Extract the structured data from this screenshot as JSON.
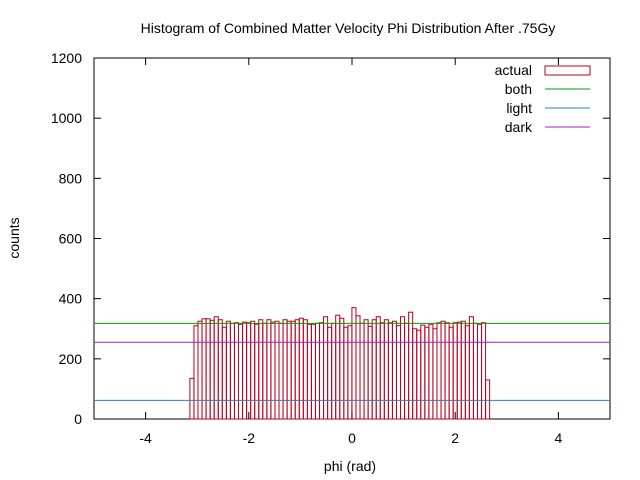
{
  "chart_data": {
    "type": "bar",
    "title": "Histogram of Combined Matter Velocity Phi Distribution After .75Gy",
    "xlabel": "phi (rad)",
    "ylabel": "counts",
    "xlim": [
      -5,
      5
    ],
    "ylim": [
      0,
      1200
    ],
    "xticks": [
      -4,
      -2,
      0,
      2,
      4
    ],
    "yticks": [
      0,
      200,
      400,
      600,
      800,
      1000,
      1200
    ],
    "xtick_labels": [
      "-4",
      "-2",
      "0",
      "2",
      "4"
    ],
    "ytick_labels": [
      "0",
      "200",
      "400",
      "600",
      "800",
      "1000",
      "1200"
    ],
    "grid": false,
    "legend_position": "top-right",
    "histogram": {
      "name": "actual",
      "color": "#b8001f",
      "bin_start": -3.1416,
      "bin_width": 0.0785,
      "counts": [
        135,
        310,
        325,
        333,
        333,
        328,
        340,
        330,
        305,
        325,
        318,
        320,
        315,
        322,
        320,
        325,
        315,
        330,
        318,
        330,
        322,
        325,
        318,
        330,
        325,
        325,
        330,
        335,
        330,
        315,
        315,
        318,
        320,
        340,
        305,
        318,
        345,
        335,
        305,
        310,
        370,
        343,
        318,
        330,
        308,
        330,
        340,
        320,
        330,
        320,
        325,
        310,
        340,
        318,
        355,
        300,
        295,
        312,
        305,
        315,
        300,
        320,
        325,
        320,
        305,
        320,
        322,
        325,
        310,
        340,
        318,
        315,
        320,
        130
      ]
    },
    "lines": [
      {
        "name": "both",
        "y": 318,
        "color": "#00a000"
      },
      {
        "name": "light",
        "y": 62,
        "color": "#2a7fb8"
      },
      {
        "name": "dark",
        "y": 255,
        "color": "#a020c0"
      }
    ]
  }
}
